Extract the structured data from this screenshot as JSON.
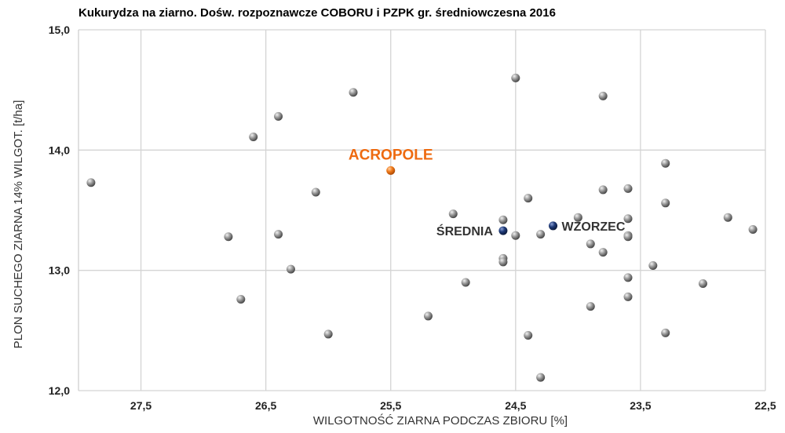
{
  "chart_data": {
    "type": "scatter",
    "title": "Kukurydza na ziarno. Dośw. rozpoznawcze COBORU i PZPK gr. średniowczesna 2016",
    "xlabel": "WILGOTNOŚĆ ZIARNA PODCZAS ZBIORU [%]",
    "ylabel": "PLON SUCHEGO ZIARNA 14% WILGOT. [t/ha]",
    "xlim": [
      28.0,
      22.5
    ],
    "x_reversed": true,
    "ylim": [
      12.0,
      15.0
    ],
    "xticks": [
      "27,5",
      "26,5",
      "25,5",
      "24,5",
      "23,5",
      "22,5"
    ],
    "xtick_values": [
      27.5,
      26.5,
      25.5,
      24.5,
      23.5,
      22.5
    ],
    "yticks": [
      "12,0",
      "13,0",
      "14,0",
      "15,0"
    ],
    "ytick_values": [
      12.0,
      13.0,
      14.0,
      15.0
    ],
    "grid": true,
    "colors": {
      "varieties": "#7a7a7a",
      "highlight": "#ee6a10",
      "reference": "#1a2f63",
      "grid": "#d4d4d4"
    },
    "series": [
      {
        "role": "varieties",
        "points": [
          [
            27.9,
            13.73
          ],
          [
            26.8,
            13.28
          ],
          [
            26.7,
            12.76
          ],
          [
            26.6,
            14.11
          ],
          [
            26.4,
            14.28
          ],
          [
            26.4,
            13.3
          ],
          [
            26.3,
            13.01
          ],
          [
            26.1,
            13.65
          ],
          [
            26.0,
            12.47
          ],
          [
            25.8,
            14.48
          ],
          [
            25.2,
            12.62
          ],
          [
            25.0,
            13.47
          ],
          [
            24.9,
            12.9
          ],
          [
            24.6,
            13.42
          ],
          [
            24.6,
            13.1
          ],
          [
            24.6,
            13.07
          ],
          [
            24.5,
            14.6
          ],
          [
            24.5,
            13.29
          ],
          [
            24.4,
            13.6
          ],
          [
            24.4,
            12.46
          ],
          [
            24.3,
            13.3
          ],
          [
            24.3,
            12.11
          ],
          [
            24.0,
            13.44
          ],
          [
            23.9,
            13.22
          ],
          [
            23.9,
            12.7
          ],
          [
            23.8,
            14.45
          ],
          [
            23.8,
            13.67
          ],
          [
            23.8,
            13.15
          ],
          [
            23.6,
            13.68
          ],
          [
            23.6,
            13.43
          ],
          [
            23.6,
            13.29
          ],
          [
            23.6,
            13.28
          ],
          [
            23.6,
            12.94
          ],
          [
            23.6,
            12.78
          ],
          [
            23.4,
            13.04
          ],
          [
            23.3,
            13.89
          ],
          [
            23.3,
            13.56
          ],
          [
            23.3,
            12.48
          ],
          [
            23.0,
            12.89
          ],
          [
            22.8,
            13.44
          ],
          [
            22.6,
            13.34
          ]
        ]
      },
      {
        "role": "highlight",
        "label": "ACROPOLE",
        "points": [
          [
            25.5,
            13.83
          ]
        ]
      },
      {
        "role": "reference",
        "label": "ŚREDNIA",
        "points": [
          [
            24.6,
            13.33
          ]
        ]
      },
      {
        "role": "reference",
        "label": "WZORZEC",
        "points": [
          [
            24.2,
            13.37
          ]
        ]
      }
    ]
  }
}
